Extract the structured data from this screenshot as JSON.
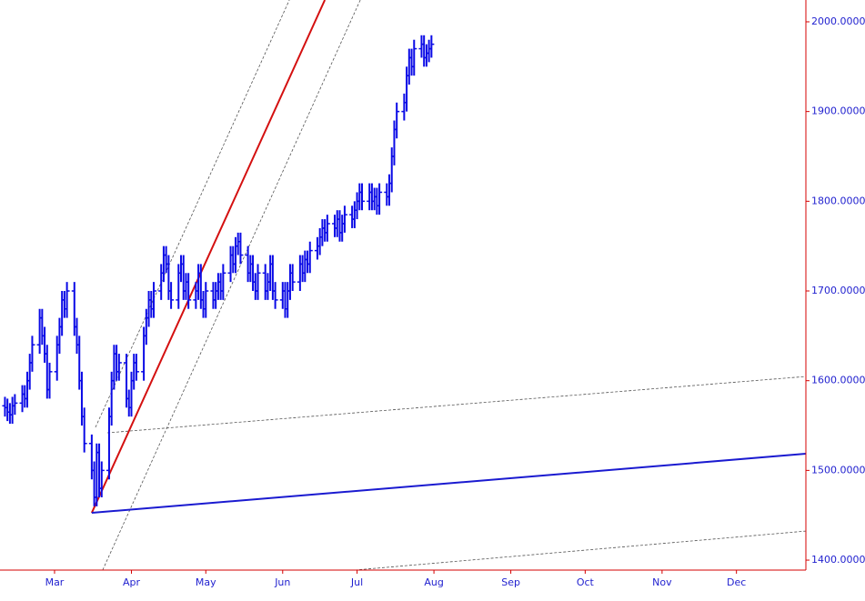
{
  "chart_data": {
    "type": "ohlc",
    "color": "#0a0ae6",
    "axis_color": "#d40000",
    "xlim": [
      38,
      363
    ],
    "ylim": [
      1388.9,
      2024.3
    ],
    "xticks": [
      {
        "value": 60,
        "label": "Mar"
      },
      {
        "value": 91,
        "label": "Apr"
      },
      {
        "value": 121,
        "label": "May"
      },
      {
        "value": 152,
        "label": "Jun"
      },
      {
        "value": 182,
        "label": "Jul"
      },
      {
        "value": 213,
        "label": "Aug"
      },
      {
        "value": 244,
        "label": "Sep"
      },
      {
        "value": 274,
        "label": "Oct"
      },
      {
        "value": 305,
        "label": "Nov"
      },
      {
        "value": 335,
        "label": "Dec"
      }
    ],
    "yticks": [
      {
        "value": 1400,
        "label": "1400.00000"
      },
      {
        "value": 1500,
        "label": "1500.00000"
      },
      {
        "value": 1600,
        "label": "1600.00000"
      },
      {
        "value": 1700,
        "label": "1700.00000"
      },
      {
        "value": 1800,
        "label": "1800.00000"
      },
      {
        "value": 1900,
        "label": "1900.00000"
      },
      {
        "value": 2000,
        "label": "2000.00000"
      }
    ],
    "x": [
      40,
      41,
      42,
      43,
      44,
      47,
      48,
      49,
      50,
      51,
      54,
      55,
      56,
      57,
      58,
      61,
      62,
      63,
      64,
      65,
      68,
      69,
      70,
      71,
      72,
      75,
      76,
      77,
      78,
      79,
      82,
      83,
      84,
      85,
      86,
      89,
      90,
      91,
      92,
      93,
      96,
      97,
      98,
      99,
      100,
      103,
      104,
      105,
      106,
      107,
      110,
      111,
      112,
      113,
      114,
      117,
      118,
      119,
      120,
      121,
      124,
      125,
      126,
      127,
      128,
      131,
      132,
      133,
      134,
      135,
      138,
      139,
      140,
      141,
      142,
      145,
      146,
      147,
      148,
      149,
      152,
      153,
      154,
      155,
      156,
      159,
      160,
      161,
      162,
      163,
      166,
      167,
      168,
      169,
      170,
      173,
      174,
      175,
      176,
      177,
      180,
      181,
      182,
      183,
      184,
      187,
      188,
      189,
      190,
      191,
      194,
      195,
      196,
      197,
      198,
      201,
      202,
      203,
      204,
      205,
      208,
      209,
      210,
      211,
      212
    ],
    "open": [
      1572,
      1570,
      1565,
      1562,
      1572,
      1575,
      1585,
      1580,
      1600,
      1620,
      1640,
      1670,
      1650,
      1630,
      1590,
      1610,
      1640,
      1660,
      1690,
      1680,
      1700,
      1660,
      1640,
      1600,
      1560,
      1530,
      1500,
      1470,
      1520,
      1480,
      1500,
      1560,
      1600,
      1630,
      1610,
      1620,
      1580,
      1570,
      1600,
      1620,
      1610,
      1650,
      1670,
      1690,
      1680,
      1700,
      1720,
      1740,
      1730,
      1700,
      1690,
      1720,
      1730,
      1700,
      1710,
      1690,
      1700,
      1720,
      1690,
      1680,
      1700,
      1690,
      1700,
      1710,
      1700,
      1720,
      1740,
      1730,
      1750,
      1755,
      1740,
      1720,
      1730,
      1710,
      1700,
      1720,
      1700,
      1710,
      1730,
      1700,
      1690,
      1700,
      1680,
      1700,
      1720,
      1710,
      1730,
      1720,
      1735,
      1730,
      1745,
      1750,
      1760,
      1770,
      1765,
      1775,
      1770,
      1780,
      1765,
      1775,
      1785,
      1780,
      1790,
      1800,
      1810,
      1800,
      1810,
      1800,
      1805,
      1795,
      1810,
      1805,
      1820,
      1850,
      1880,
      1900,
      1910,
      1940,
      1960,
      1950,
      1970,
      1975,
      1960,
      1965,
      1970
    ],
    "high": [
      1582,
      1580,
      1575,
      1582,
      1585,
      1595,
      1595,
      1610,
      1630,
      1650,
      1680,
      1680,
      1660,
      1640,
      1620,
      1650,
      1670,
      1700,
      1700,
      1710,
      1710,
      1670,
      1650,
      1610,
      1570,
      1540,
      1510,
      1530,
      1530,
      1510,
      1570,
      1610,
      1640,
      1640,
      1630,
      1630,
      1590,
      1610,
      1630,
      1630,
      1660,
      1680,
      1700,
      1700,
      1710,
      1730,
      1750,
      1750,
      1740,
      1710,
      1730,
      1740,
      1740,
      1720,
      1720,
      1710,
      1730,
      1730,
      1700,
      1710,
      1710,
      1710,
      1720,
      1720,
      1730,
      1750,
      1750,
      1760,
      1765,
      1765,
      1750,
      1740,
      1740,
      1720,
      1730,
      1730,
      1720,
      1740,
      1740,
      1710,
      1710,
      1710,
      1710,
      1730,
      1730,
      1740,
      1740,
      1745,
      1745,
      1755,
      1760,
      1770,
      1780,
      1780,
      1785,
      1785,
      1790,
      1790,
      1785,
      1795,
      1795,
      1800,
      1810,
      1820,
      1820,
      1820,
      1820,
      1815,
      1815,
      1820,
      1820,
      1830,
      1860,
      1890,
      1910,
      1920,
      1950,
      1970,
      1970,
      1980,
      1985,
      1985,
      1975,
      1980,
      1985
    ],
    "low": [
      1560,
      1555,
      1552,
      1552,
      1562,
      1565,
      1570,
      1570,
      1590,
      1610,
      1630,
      1640,
      1620,
      1580,
      1580,
      1600,
      1630,
      1650,
      1670,
      1670,
      1650,
      1630,
      1590,
      1550,
      1520,
      1490,
      1460,
      1460,
      1470,
      1470,
      1490,
      1550,
      1590,
      1600,
      1600,
      1570,
      1560,
      1560,
      1590,
      1600,
      1600,
      1640,
      1660,
      1670,
      1670,
      1690,
      1710,
      1720,
      1690,
      1680,
      1680,
      1710,
      1690,
      1690,
      1680,
      1680,
      1690,
      1680,
      1670,
      1670,
      1680,
      1680,
      1690,
      1690,
      1690,
      1710,
      1720,
      1720,
      1740,
      1730,
      1710,
      1710,
      1700,
      1690,
      1690,
      1690,
      1690,
      1700,
      1690,
      1680,
      1680,
      1670,
      1670,
      1690,
      1700,
      1700,
      1710,
      1710,
      1720,
      1720,
      1735,
      1740,
      1750,
      1755,
      1755,
      1760,
      1760,
      1755,
      1755,
      1765,
      1770,
      1770,
      1780,
      1790,
      1790,
      1790,
      1790,
      1790,
      1785,
      1785,
      1795,
      1795,
      1810,
      1840,
      1870,
      1890,
      1900,
      1930,
      1940,
      1940,
      1960,
      1950,
      1950,
      1955,
      1960
    ],
    "close": [
      1570,
      1565,
      1562,
      1572,
      1575,
      1585,
      1580,
      1600,
      1620,
      1640,
      1670,
      1650,
      1630,
      1590,
      1610,
      1640,
      1660,
      1690,
      1680,
      1700,
      1660,
      1640,
      1600,
      1560,
      1530,
      1500,
      1470,
      1520,
      1480,
      1500,
      1560,
      1600,
      1630,
      1610,
      1620,
      1580,
      1570,
      1600,
      1620,
      1610,
      1650,
      1670,
      1690,
      1680,
      1700,
      1720,
      1740,
      1730,
      1700,
      1690,
      1720,
      1730,
      1700,
      1710,
      1690,
      1700,
      1720,
      1690,
      1680,
      1700,
      1690,
      1700,
      1710,
      1700,
      1720,
      1740,
      1730,
      1750,
      1755,
      1740,
      1720,
      1730,
      1710,
      1700,
      1720,
      1700,
      1710,
      1730,
      1700,
      1690,
      1700,
      1680,
      1700,
      1720,
      1710,
      1730,
      1720,
      1735,
      1730,
      1745,
      1750,
      1760,
      1770,
      1765,
      1775,
      1770,
      1780,
      1765,
      1775,
      1785,
      1780,
      1790,
      1800,
      1810,
      1800,
      1810,
      1800,
      1805,
      1795,
      1810,
      1805,
      1820,
      1850,
      1880,
      1900,
      1910,
      1940,
      1960,
      1950,
      1970,
      1975,
      1960,
      1965,
      1970,
      1975
    ],
    "trendlines": [
      {
        "color": "#555555",
        "dash": "dashed",
        "x": [
          76.5,
          154.7
        ],
        "y": [
          1548.0,
          2024.3
        ]
      },
      {
        "color": "#555555",
        "dash": "dashed",
        "x": [
          79.4,
          183.3
        ],
        "y": [
          1388.9,
          2024.3
        ]
      },
      {
        "color": "#555555",
        "dash": "dashed",
        "x": [
          81.3,
          363.1
        ],
        "y": [
          1541.9,
          1604.7
        ]
      },
      {
        "color": "#555555",
        "dash": "dashed",
        "x": [
          181.1,
          363.1
        ],
        "y": [
          1388.9,
          1432.4
        ]
      },
      {
        "color": "#d41010",
        "dash": "solid",
        "x": [
          75.0,
          169.0
        ],
        "y": [
          1452.7,
          2024.3
        ]
      },
      {
        "color": "#1a1ad0",
        "dash": "solid",
        "x": [
          75.0,
          363.1
        ],
        "y": [
          1452.7,
          1518.6
        ]
      }
    ]
  }
}
